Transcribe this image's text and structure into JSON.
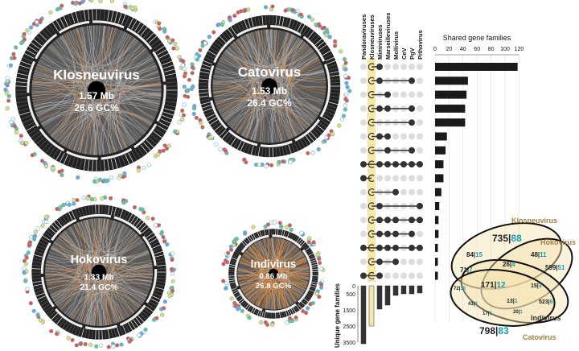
{
  "circos": [
    {
      "name": "Klosneuvirus",
      "size": "1.57 Mb",
      "gc": "26.6 GC%"
    },
    {
      "name": "Catovirus",
      "size": "1.53 Mb",
      "gc": "26.4 GC%"
    },
    {
      "name": "Hokovirus",
      "size": "1.33 Mb",
      "gc": "21.4 GC%"
    },
    {
      "name": "Indivirus",
      "size": "0.86 Mb",
      "gc": "26.8 GC%"
    }
  ],
  "colors": {
    "dark": "#333333",
    "highlight": "#f7e7a6",
    "bar": "#1a1a1a",
    "chord_gray": "#b5b5b5",
    "chord_orange": "#e08a3c",
    "venn_fill": "#f3e3b0",
    "venn_number_accent": "#1a9bb0",
    "venn_label": "#a08040"
  },
  "chart_data": [
    {
      "type": "bar",
      "title": "Shared gene families",
      "orientation": "horizontal",
      "xlim": [
        0,
        120
      ],
      "ticks": [
        "0",
        "20",
        "40",
        "60",
        "80",
        "100",
        "120"
      ],
      "grid": true,
      "sets": [
        "Pandoraviruses",
        "Klosneuviruses",
        "Mimiviruses",
        "Marseilleviruses",
        "Mollivirus",
        "CeV",
        "PgV",
        "Pithovirus"
      ],
      "intersections": [
        {
          "members": [
            1,
            2
          ],
          "value": 118
        },
        {
          "members": [
            1,
            2,
            6
          ],
          "value": 47
        },
        {
          "members": [
            1,
            3
          ],
          "value": 45
        },
        {
          "members": [
            1,
            2,
            3,
            6
          ],
          "value": 43
        },
        {
          "members": [
            1,
            6
          ],
          "value": 43
        },
        {
          "members": [
            1,
            2,
            3
          ],
          "value": 17
        },
        {
          "members": [
            1,
            3,
            6
          ],
          "value": 15
        },
        {
          "members": [
            0,
            1,
            2,
            3,
            4,
            5,
            6,
            7
          ],
          "value": 12
        },
        {
          "members": [
            0,
            1
          ],
          "value": 12
        },
        {
          "members": [
            1,
            4
          ],
          "value": 9
        },
        {
          "members": [
            1,
            2,
            7
          ],
          "value": 6
        },
        {
          "members": [
            1,
            2,
            3,
            4,
            6,
            7
          ],
          "value": 5
        },
        {
          "members": [
            1,
            2,
            3,
            4,
            6
          ],
          "value": 5
        },
        {
          "members": [
            0,
            1,
            2,
            3,
            4,
            6,
            7
          ],
          "value": 4
        },
        {
          "members": [
            1,
            2,
            4
          ],
          "value": 4
        },
        {
          "members": [
            0,
            1,
            2
          ],
          "value": 4
        }
      ]
    },
    {
      "type": "bar",
      "ylabel": "Unique gene families",
      "ylim": [
        0,
        3500
      ],
      "ticks": [
        "0",
        "500",
        "1500",
        "2500",
        "3500"
      ],
      "categories": [
        "Pandoraviruses",
        "Klosneuviruses",
        "Mimiviruses",
        "Marseilleviruses",
        "Mollivirus",
        "CeV",
        "PgV",
        "Pithovirus"
      ],
      "values": [
        3600,
        2500,
        1450,
        1200,
        600,
        500,
        500,
        450
      ]
    }
  ],
  "venn": {
    "sets": [
      "Klosneuvirus",
      "Hokovirus",
      "Indivirus",
      "Catovirus"
    ],
    "regions": [
      {
        "a": "735",
        "b": "88"
      },
      {
        "a": "48",
        "b": "11"
      },
      {
        "a": "599",
        "b": "51"
      },
      {
        "a": "84",
        "b": "15"
      },
      {
        "a": "26",
        "b": "4"
      },
      {
        "a": "71",
        "b": "7"
      },
      {
        "a": "171",
        "b": "12"
      },
      {
        "a": "15",
        "b": "3"
      },
      {
        "a": "72",
        "b": "36"
      },
      {
        "a": "13",
        "b": "1"
      },
      {
        "a": "41",
        "b": "3"
      },
      {
        "a": "17",
        "b": "6"
      },
      {
        "a": "20",
        "b": "1"
      },
      {
        "a": "523",
        "b": "6"
      },
      {
        "a": "798",
        "b": "83"
      }
    ]
  }
}
